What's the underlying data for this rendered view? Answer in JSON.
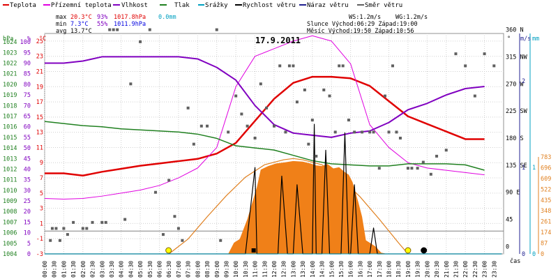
{
  "chart_data": {
    "type": "line",
    "title": "17.9.2011",
    "legend": [
      {
        "label": "Teplota",
        "color": "#e00000"
      },
      {
        "label": "Přízemní teplota",
        "color": "#e000e0"
      },
      {
        "label": "Vlhkost",
        "color": "#8000c0"
      },
      {
        "label": "Tlak",
        "color": "#208020"
      },
      {
        "label": "Srážky",
        "color": "#00a0c0"
      },
      {
        "label": "Rychlost větru",
        "color": "#000000"
      },
      {
        "label": "Náraz větru",
        "color": "#202090"
      },
      {
        "label": "Směr větru",
        "color": "#606060"
      }
    ],
    "stats": {
      "max": {
        "label": "max",
        "temp": "20.3°C",
        "hum": "93%",
        "press": "1017.8hPa",
        "rain": "0.0mm"
      },
      "min": {
        "label": "min",
        "temp": "7.3°C",
        "hum": "55%",
        "press": "1011.9hPa"
      },
      "avg": {
        "label": "avg",
        "temp": "13.7°C"
      }
    },
    "info": {
      "ws": "WS:1.2m/s",
      "wg": "WG:1.2m/s",
      "sun": "Slunce Východ:06:29  Západ:19:00",
      "moon": "Měsíc  Východ:19:50  Západ:10:56"
    },
    "axes": {
      "hpa_unit": "hPa",
      "pct_unit": "%",
      "temp_unit": "°C",
      "hpa_ticks": [
        1004,
        1005,
        1006,
        1007,
        1008,
        1009,
        1010,
        1011,
        1012,
        1013,
        1014,
        1015,
        1016,
        1017,
        1018,
        1019,
        1020,
        1021,
        1022,
        1023,
        1024
      ],
      "pct_ticks": [
        0,
        5,
        10,
        15,
        20,
        25,
        30,
        35,
        40,
        45,
        50,
        55,
        60,
        65,
        70,
        75,
        80,
        85,
        90,
        95,
        100
      ],
      "temp_ticks": [
        -3,
        -1,
        1,
        3,
        5,
        7,
        9,
        11,
        13,
        15,
        17,
        19,
        21,
        23,
        25
      ],
      "deg_unit": "°",
      "deg_ticks": [
        {
          "v": "0",
          "p": 0
        },
        {
          "v": "45",
          "p": 45
        },
        {
          "v": "90 E",
          "p": 90
        },
        {
          "v": "135 SE",
          "p": 135
        },
        {
          "v": "180 S",
          "p": 180
        },
        {
          "v": "225 SW",
          "p": 225
        },
        {
          "v": "270 W",
          "p": 270
        },
        {
          "v": "315 NW",
          "p": 315
        },
        {
          "v": "360 N",
          "p": 360
        }
      ],
      "ms_unit": "m/s",
      "ms_ticks": [
        0,
        1,
        2
      ],
      "mm_unit": "mm",
      "mm_ticks": [
        0,
        1
      ],
      "wm2_ticks": [
        0,
        87,
        174,
        261,
        348,
        435,
        522,
        609,
        696,
        783
      ],
      "time_label": "čas",
      "time_ticks": [
        "00:00",
        "00:30",
        "01:00",
        "01:30",
        "02:00",
        "02:30",
        "03:00",
        "03:30",
        "04:00",
        "04:30",
        "05:00",
        "05:30",
        "06:00",
        "06:30",
        "07:00",
        "07:30",
        "08:00",
        "08:30",
        "09:00",
        "09:30",
        "10:00",
        "10:30",
        "11:00",
        "11:30",
        "12:00",
        "12:30",
        "13:00",
        "13:30",
        "14:00",
        "14:30",
        "15:00",
        "15:30",
        "16:00",
        "16:30",
        "17:00",
        "17:30",
        "18:00",
        "18:30",
        "19:00",
        "19:30",
        "20:00",
        "20:30",
        "21:00",
        "21:30",
        "22:00",
        "22:30",
        "23:00",
        "23:30"
      ]
    },
    "series": [
      {
        "name": "Teplota",
        "color": "#e00000",
        "unit": "°C",
        "points": [
          [
            0,
            7.6
          ],
          [
            1,
            7.6
          ],
          [
            2,
            7.3
          ],
          [
            3,
            7.8
          ],
          [
            4,
            8.2
          ],
          [
            5,
            8.6
          ],
          [
            6,
            8.9
          ],
          [
            7,
            9.2
          ],
          [
            8,
            9.5
          ],
          [
            9,
            10.2
          ],
          [
            10,
            11.6
          ],
          [
            11,
            14.5
          ],
          [
            12,
            17.4
          ],
          [
            13,
            19.5
          ],
          [
            14,
            20.3
          ],
          [
            15,
            20.3
          ],
          [
            16,
            20.1
          ],
          [
            17,
            19.1
          ],
          [
            18,
            17.1
          ],
          [
            19,
            15.1
          ],
          [
            20,
            14.1
          ],
          [
            21,
            13.1
          ],
          [
            22,
            12.1
          ],
          [
            23,
            12.1
          ]
        ]
      },
      {
        "name": "Přízemní teplota",
        "color": "#e000e0",
        "unit": "°C",
        "points": [
          [
            0,
            4.3
          ],
          [
            1,
            4.2
          ],
          [
            2,
            4.3
          ],
          [
            3,
            4.6
          ],
          [
            4,
            5.0
          ],
          [
            5,
            5.4
          ],
          [
            6,
            6.0
          ],
          [
            7,
            7.0
          ],
          [
            8,
            8.3
          ],
          [
            9,
            11.0
          ],
          [
            10,
            19.0
          ],
          [
            11,
            23.0
          ],
          [
            12,
            24.0
          ],
          [
            13,
            25.0
          ],
          [
            14,
            25.7
          ],
          [
            15,
            25.0
          ],
          [
            16,
            22.0
          ],
          [
            17,
            14.0
          ],
          [
            18,
            11.0
          ],
          [
            19,
            9.0
          ],
          [
            20,
            8.3
          ],
          [
            21,
            8.0
          ],
          [
            22,
            7.7
          ],
          [
            23,
            7.4
          ]
        ]
      },
      {
        "name": "Vlhkost",
        "color": "#8000c0",
        "unit": "%",
        "points": [
          [
            0,
            90
          ],
          [
            1,
            90
          ],
          [
            2,
            91
          ],
          [
            3,
            93
          ],
          [
            4,
            93
          ],
          [
            5,
            93
          ],
          [
            6,
            93
          ],
          [
            7,
            93
          ],
          [
            8,
            92
          ],
          [
            9,
            88
          ],
          [
            10,
            82
          ],
          [
            11,
            70
          ],
          [
            12,
            61
          ],
          [
            13,
            57
          ],
          [
            14,
            56
          ],
          [
            15,
            55
          ],
          [
            16,
            57
          ],
          [
            17,
            58
          ],
          [
            18,
            62
          ],
          [
            19,
            68
          ],
          [
            20,
            71
          ],
          [
            21,
            75
          ],
          [
            22,
            78
          ],
          [
            23,
            79
          ]
        ]
      },
      {
        "name": "Tlak",
        "color": "#208020",
        "unit": "hPa",
        "points": [
          [
            0,
            1016.5
          ],
          [
            1,
            1016.3
          ],
          [
            2,
            1016.1
          ],
          [
            3,
            1016.0
          ],
          [
            4,
            1015.8
          ],
          [
            5,
            1015.7
          ],
          [
            6,
            1015.6
          ],
          [
            7,
            1015.5
          ],
          [
            8,
            1015.3
          ],
          [
            9,
            1014.9
          ],
          [
            10,
            1014.2
          ],
          [
            11,
            1014.0
          ],
          [
            12,
            1013.8
          ],
          [
            13,
            1013.3
          ],
          [
            14,
            1012.8
          ],
          [
            15,
            1012.5
          ],
          [
            16,
            1012.4
          ],
          [
            17,
            1012.3
          ],
          [
            18,
            1012.3
          ],
          [
            19,
            1012.5
          ],
          [
            20,
            1012.5
          ],
          [
            21,
            1012.5
          ],
          [
            22,
            1012.4
          ],
          [
            23,
            1011.9
          ]
        ]
      },
      {
        "name": "Rychlost větru",
        "color": "#000000",
        "unit": "m/s",
        "points": [
          [
            0,
            0
          ],
          [
            10.5,
            0
          ],
          [
            11.0,
            1.0
          ],
          [
            11.1,
            0
          ],
          [
            12.2,
            0
          ],
          [
            12.4,
            0.9
          ],
          [
            12.7,
            0
          ],
          [
            13.0,
            0
          ],
          [
            13.2,
            0.8
          ],
          [
            13.5,
            0
          ],
          [
            14.0,
            0
          ],
          [
            14.1,
            1.5
          ],
          [
            14.2,
            0
          ],
          [
            14.5,
            0
          ],
          [
            14.7,
            1.2
          ],
          [
            14.9,
            0
          ],
          [
            15.5,
            0
          ],
          [
            15.7,
            1.4
          ],
          [
            15.9,
            0
          ],
          [
            16.0,
            0
          ],
          [
            16.2,
            0.8
          ],
          [
            16.4,
            0
          ],
          [
            17.0,
            0
          ],
          [
            17.2,
            0.3
          ],
          [
            17.4,
            0
          ],
          [
            23.9,
            0
          ]
        ]
      },
      {
        "name": "Srážky",
        "color": "#00a0c0",
        "unit": "mm",
        "points": [
          [
            0,
            0
          ],
          [
            23.9,
            0
          ]
        ]
      }
    ],
    "wind_direction_points": [
      [
        0.3,
        10
      ],
      [
        0.4,
        30
      ],
      [
        0.6,
        30
      ],
      [
        0.8,
        10
      ],
      [
        1.0,
        30
      ],
      [
        1.2,
        20
      ],
      [
        1.5,
        40
      ],
      [
        2.0,
        30
      ],
      [
        2.2,
        30
      ],
      [
        2.5,
        40
      ],
      [
        3.0,
        40
      ],
      [
        3.2,
        40
      ],
      [
        3.4,
        360
      ],
      [
        3.6,
        360
      ],
      [
        3.8,
        360
      ],
      [
        4.2,
        45
      ],
      [
        4.5,
        270
      ],
      [
        5.0,
        340
      ],
      [
        5.5,
        360
      ],
      [
        5.8,
        90
      ],
      [
        6.2,
        20
      ],
      [
        6.5,
        110
      ],
      [
        6.8,
        50
      ],
      [
        7.0,
        30
      ],
      [
        7.2,
        10
      ],
      [
        7.5,
        230
      ],
      [
        7.8,
        170
      ],
      [
        8.2,
        200
      ],
      [
        8.5,
        200
      ],
      [
        9.0,
        360
      ],
      [
        9.2,
        10
      ],
      [
        9.6,
        190
      ],
      [
        10.0,
        250
      ],
      [
        10.3,
        220
      ],
      [
        10.6,
        200
      ],
      [
        11.0,
        180
      ],
      [
        11.3,
        270
      ],
      [
        11.6,
        230
      ],
      [
        12.0,
        200
      ],
      [
        12.3,
        300
      ],
      [
        12.6,
        190
      ],
      [
        12.8,
        300
      ],
      [
        13.0,
        300
      ],
      [
        13.2,
        240
      ],
      [
        13.6,
        260
      ],
      [
        13.8,
        170
      ],
      [
        14.0,
        210
      ],
      [
        14.2,
        150
      ],
      [
        14.6,
        260
      ],
      [
        14.9,
        250
      ],
      [
        15.2,
        190
      ],
      [
        15.4,
        300
      ],
      [
        15.6,
        300
      ],
      [
        15.9,
        210
      ],
      [
        16.2,
        190
      ],
      [
        16.6,
        190
      ],
      [
        17.0,
        190
      ],
      [
        17.2,
        190
      ],
      [
        17.5,
        130
      ],
      [
        17.8,
        250
      ],
      [
        18.0,
        190
      ],
      [
        18.2,
        300
      ],
      [
        18.4,
        190
      ],
      [
        18.6,
        180
      ],
      [
        19.0,
        130
      ],
      [
        19.2,
        130
      ],
      [
        19.5,
        130
      ],
      [
        19.8,
        140
      ],
      [
        20.2,
        120
      ],
      [
        20.5,
        150
      ],
      [
        21.0,
        160
      ],
      [
        21.5,
        320
      ],
      [
        22.0,
        300
      ],
      [
        22.5,
        250
      ],
      [
        23.0,
        320
      ],
      [
        23.5,
        300
      ]
    ],
    "solar_measured": [
      [
        9.6,
        0
      ],
      [
        9.7,
        30
      ],
      [
        9.9,
        90
      ],
      [
        10.2,
        120
      ],
      [
        10.6,
        280
      ],
      [
        11.1,
        540
      ],
      [
        11.3,
        680
      ],
      [
        11.7,
        710
      ],
      [
        12.1,
        730
      ],
      [
        12.6,
        740
      ],
      [
        13.0,
        750
      ],
      [
        13.5,
        745
      ],
      [
        13.9,
        730
      ],
      [
        14.2,
        715
      ],
      [
        14.5,
        710
      ],
      [
        14.8,
        725
      ],
      [
        15.1,
        690
      ],
      [
        15.4,
        700
      ],
      [
        15.7,
        660
      ],
      [
        15.9,
        640
      ],
      [
        16.1,
        580
      ],
      [
        16.4,
        420
      ],
      [
        16.6,
        300
      ],
      [
        16.8,
        110
      ],
      [
        17.0,
        90
      ],
      [
        17.3,
        60
      ],
      [
        17.6,
        10
      ],
      [
        17.9,
        0
      ]
    ],
    "solar_theoretical": [
      [
        6.5,
        0
      ],
      [
        7.5,
        120
      ],
      [
        8.5,
        300
      ],
      [
        9.5,
        470
      ],
      [
        10.5,
        620
      ],
      [
        11.5,
        720
      ],
      [
        12.5,
        760
      ],
      [
        13.0,
        770
      ],
      [
        13.5,
        760
      ],
      [
        14.5,
        720
      ],
      [
        15.5,
        610
      ],
      [
        16.5,
        460
      ],
      [
        17.5,
        280
      ],
      [
        18.5,
        90
      ],
      [
        19.0,
        0
      ]
    ],
    "solar_unit": "W/m²",
    "sunrise": 6.48,
    "sunset": 19.0,
    "moonrise": 19.83,
    "moonset": 10.93
  }
}
